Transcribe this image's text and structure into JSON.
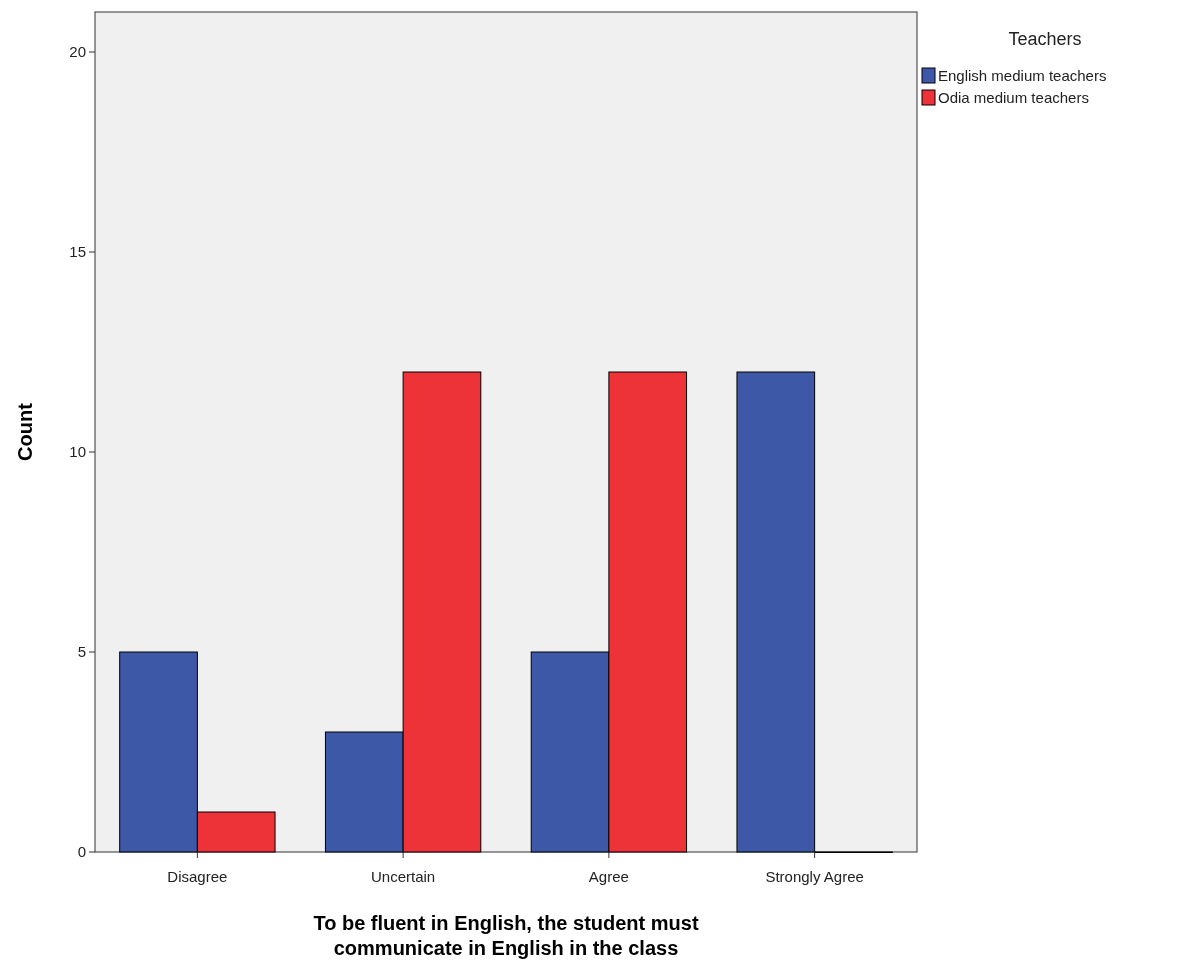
{
  "chart_data": {
    "type": "bar",
    "xlabel": "To be fluent in English, the student must communicate in English in the class",
    "ylabel": "Count",
    "legend_title": "Teachers",
    "categories": [
      "Disagree",
      "Uncertain",
      "Agree",
      "Strongly Agree"
    ],
    "series": [
      {
        "name": "English medium teachers",
        "color": "#3e58a8",
        "values": [
          5,
          3,
          5,
          12
        ]
      },
      {
        "name": "Odia medium teachers",
        "color": "#ee3338",
        "values": [
          1,
          12,
          12,
          0
        ]
      }
    ],
    "ylim": [
      0,
      21
    ],
    "yticks": [
      0,
      5,
      10,
      15,
      20
    ],
    "grid": false,
    "legend": "top right"
  }
}
